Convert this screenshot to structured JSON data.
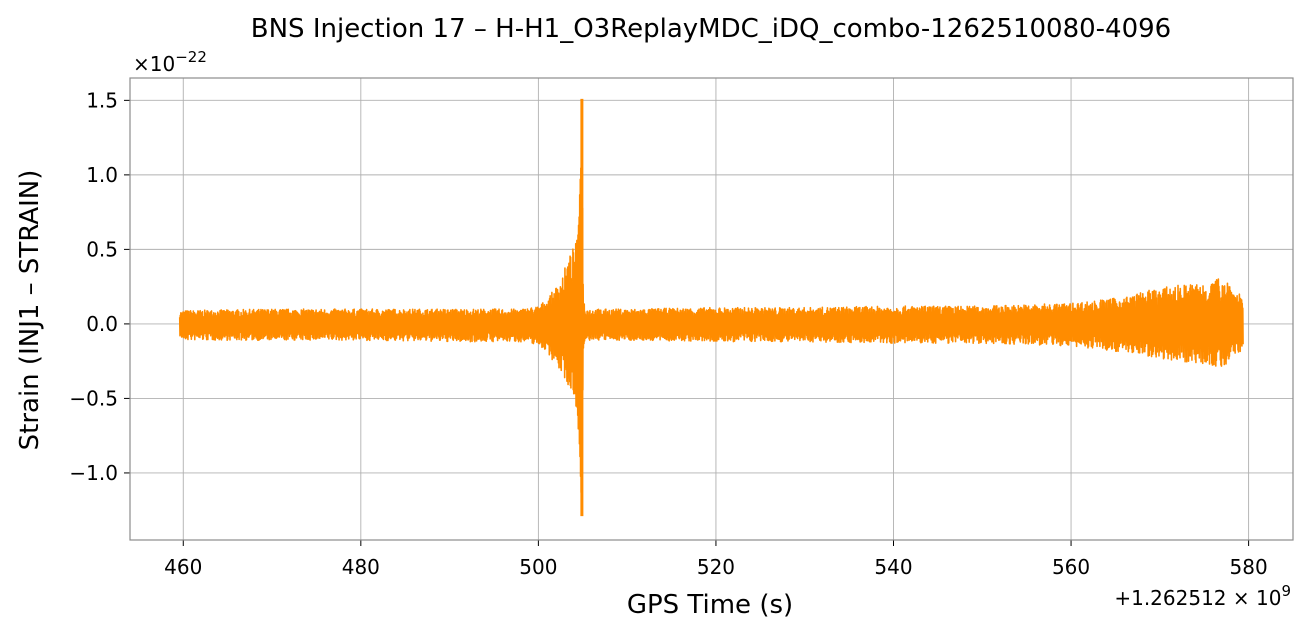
{
  "chart_data": {
    "type": "line",
    "title": "BNS Injection 17 – H-H1_O3ReplayMDC_iDQ_combo-1262510080-4096",
    "xlabel": "GPS Time (s)",
    "ylabel": "Strain (INJ1 – STRAIN)",
    "x_offset_label": "+1.262512 × 10",
    "x_offset_exponent": "9",
    "y_scale_label": "×10",
    "y_scale_exponent": "−22",
    "xlim": [
      454,
      585
    ],
    "ylim": [
      -1.45,
      1.65
    ],
    "x_ticks": [
      460,
      480,
      500,
      520,
      540,
      560,
      580
    ],
    "x_tick_labels": [
      "460",
      "480",
      "500",
      "520",
      "540",
      "560",
      "580"
    ],
    "y_ticks": [
      -1.0,
      -0.5,
      0.0,
      0.5,
      1.0,
      1.5
    ],
    "y_tick_labels": [
      "−1.0",
      "−0.5",
      "0.0",
      "0.5",
      "1.0",
      "1.5"
    ],
    "grid": true,
    "line_color": "#ff8c00",
    "series": [
      {
        "x": [
          459.6,
          459.8,
          460.0,
          470,
          480,
          490,
          498.0,
          500.0,
          501.0,
          502.0,
          503.0,
          503.5,
          504.0,
          504.4,
          504.6,
          504.75,
          504.9,
          505.05,
          505.3,
          506,
          510,
          520,
          530,
          540,
          550,
          555,
          560,
          563,
          566,
          569,
          572,
          575,
          577.5,
          578.5,
          579.4
        ],
        "upper": [
          0.1,
          0.08,
          0.09,
          0.1,
          0.1,
          0.1,
          0.1,
          0.12,
          0.17,
          0.25,
          0.38,
          0.46,
          0.52,
          0.57,
          0.8,
          1.05,
          1.51,
          0.2,
          0.11,
          0.1,
          0.1,
          0.11,
          0.11,
          0.12,
          0.12,
          0.13,
          0.14,
          0.16,
          0.18,
          0.23,
          0.26,
          0.28,
          0.32,
          0.22,
          0.2
        ],
        "lower": [
          -0.08,
          -0.1,
          -0.11,
          -0.11,
          -0.11,
          -0.12,
          -0.12,
          -0.14,
          -0.19,
          -0.28,
          -0.37,
          -0.44,
          -0.49,
          -0.6,
          -0.82,
          -1.05,
          -1.29,
          -0.18,
          -0.12,
          -0.11,
          -0.11,
          -0.12,
          -0.12,
          -0.13,
          -0.13,
          -0.14,
          -0.15,
          -0.17,
          -0.19,
          -0.22,
          -0.25,
          -0.27,
          -0.3,
          -0.2,
          -0.18
        ]
      }
    ]
  }
}
